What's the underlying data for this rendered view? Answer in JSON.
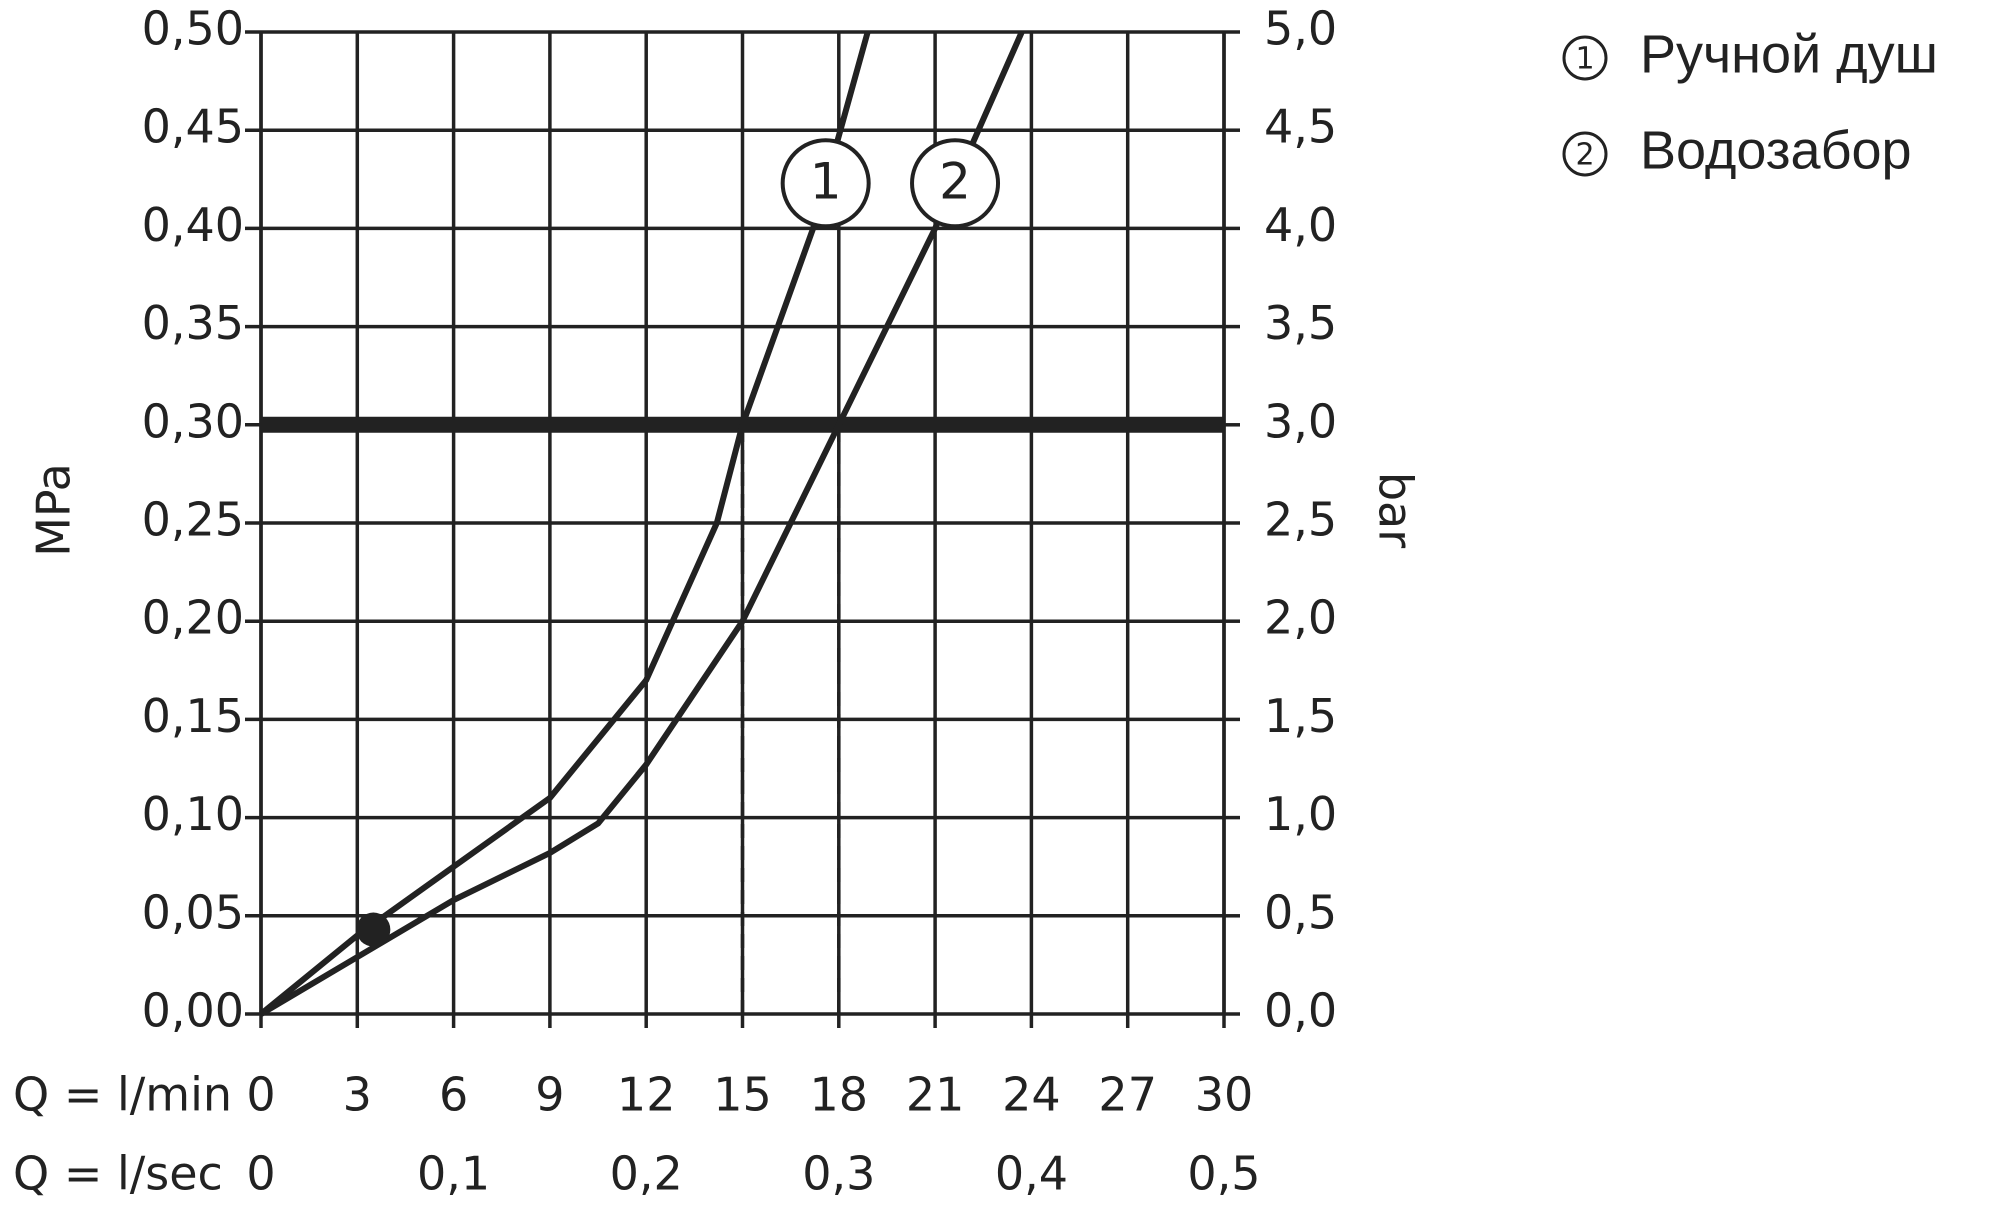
{
  "chart_data": {
    "type": "line",
    "xlabel": "Q = l/min",
    "x2label": "Q = l/sec",
    "ylabel": "MPa",
    "y2label": "bar",
    "xlim": [
      0,
      30
    ],
    "xticks": [
      0,
      3,
      6,
      9,
      12,
      15,
      18,
      21,
      24,
      27,
      30
    ],
    "x2lim": [
      0,
      0.5
    ],
    "x2ticks": [
      0,
      {
        "value": 0.1,
        "label": "0,1"
      },
      {
        "value": 0.2,
        "label": "0,2"
      },
      {
        "value": 0.3,
        "label": "0,3"
      },
      {
        "value": 0.4,
        "label": "0,4"
      },
      {
        "value": 0.5,
        "label": "0,5"
      }
    ],
    "ylim": [
      0,
      0.5
    ],
    "yticks": [
      {
        "value": 0,
        "label": "0,00"
      },
      {
        "value": 0.05,
        "label": "0,05"
      },
      {
        "value": 0.1,
        "label": "0,10"
      },
      {
        "value": 0.15,
        "label": "0,15"
      },
      {
        "value": 0.2,
        "label": "0,20"
      },
      {
        "value": 0.25,
        "label": "0,25"
      },
      {
        "value": 0.3,
        "label": "0,30"
      },
      {
        "value": 0.35,
        "label": "0,35"
      },
      {
        "value": 0.4,
        "label": "0,40"
      },
      {
        "value": 0.45,
        "label": "0,45"
      },
      {
        "value": 0.5,
        "label": "0,50"
      }
    ],
    "y2lim": [
      0,
      5
    ],
    "y2ticks": [
      {
        "value": 0,
        "label": "0,0"
      },
      {
        "value": 0.5,
        "label": "0,5"
      },
      {
        "value": 1,
        "label": "1,0"
      },
      {
        "value": 1.5,
        "label": "1,5"
      },
      {
        "value": 2,
        "label": "2,0"
      },
      {
        "value": 2.5,
        "label": "2,5"
      },
      {
        "value": 3,
        "label": "3,0"
      },
      {
        "value": 3.5,
        "label": "3,5"
      },
      {
        "value": 4,
        "label": "4,0"
      },
      {
        "value": 4.5,
        "label": "4,5"
      },
      {
        "value": 5,
        "label": "5,0"
      }
    ],
    "grid": true,
    "hline": 0.3,
    "vlines": [
      15,
      18
    ],
    "point": {
      "x": 3.5,
      "y": 0.043
    },
    "series": [
      {
        "name": "Ручной душ",
        "label": "1",
        "color": "#222222",
        "x": [
          0,
          3,
          6,
          9,
          12,
          14.2,
          15,
          17.2,
          18.9
        ],
        "values": [
          0,
          0.04,
          0.075,
          0.11,
          0.17,
          0.25,
          0.3,
          0.4,
          0.5
        ]
      },
      {
        "name": "Водозабор",
        "label": "2",
        "color": "#222222",
        "x": [
          0,
          6,
          9,
          10.5,
          12,
          15,
          18,
          21,
          23.7
        ],
        "values": [
          0,
          0.058,
          0.082,
          0.097,
          0.127,
          0.2,
          0.3,
          0.4,
          0.5
        ]
      }
    ]
  }
}
